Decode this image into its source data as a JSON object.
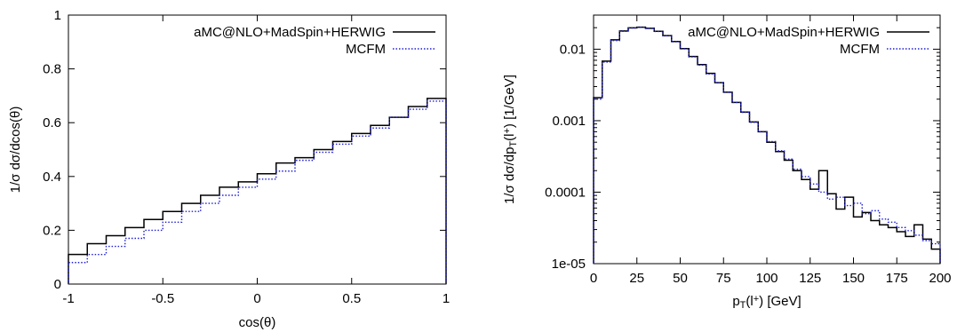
{
  "chart_data": [
    {
      "type": "line",
      "step": true,
      "title": "",
      "xlabel": "cos(θ)",
      "ylabel": "1/σ dσ/dcos(θ)",
      "xlim": [
        -1,
        1
      ],
      "ylim": [
        0,
        1
      ],
      "log_y": false,
      "grid": false,
      "legend_position": "top-right",
      "x_ticks": [
        "-1",
        "-0.5",
        "0",
        "0.5",
        "1"
      ],
      "y_ticks": [
        "0",
        "0.2",
        "0.4",
        "0.6",
        "0.8",
        "1"
      ],
      "bin_edges": [
        -1.0,
        -0.9,
        -0.8,
        -0.7,
        -0.6,
        -0.5,
        -0.4,
        -0.3,
        -0.2,
        -0.1,
        0.0,
        0.1,
        0.2,
        0.3,
        0.4,
        0.5,
        0.6,
        0.7,
        0.8,
        0.9,
        1.0
      ],
      "series": [
        {
          "name": "aMC@NLO+MadSpin+HERWIG",
          "color": "#000000",
          "dash": "solid",
          "values": [
            0.11,
            0.15,
            0.18,
            0.21,
            0.24,
            0.27,
            0.3,
            0.33,
            0.36,
            0.38,
            0.41,
            0.45,
            0.47,
            0.5,
            0.53,
            0.56,
            0.59,
            0.62,
            0.66,
            0.69
          ]
        },
        {
          "name": "MCFM",
          "color": "#1f1fd8",
          "dash": "dotted",
          "values": [
            0.08,
            0.11,
            0.14,
            0.17,
            0.2,
            0.23,
            0.27,
            0.3,
            0.33,
            0.36,
            0.39,
            0.42,
            0.46,
            0.49,
            0.52,
            0.55,
            0.58,
            0.62,
            0.65,
            0.68
          ]
        }
      ]
    },
    {
      "type": "line",
      "step": true,
      "title": "",
      "xlabel": "p_T(l^+) [GeV]",
      "ylabel": "1/σ dσ/dp_T(l^+) [1/GeV]",
      "xlim": [
        0,
        200
      ],
      "ylim": [
        1e-05,
        0.03
      ],
      "log_y": true,
      "grid": false,
      "legend_position": "top-right",
      "x_ticks": [
        "0",
        "25",
        "50",
        "75",
        "100",
        "125",
        "150",
        "175",
        "200"
      ],
      "y_ticks": [
        {
          "value": 0.01,
          "label": "0.01"
        },
        {
          "value": 0.001,
          "label": "0.001"
        },
        {
          "value": 0.0001,
          "label": "0.0001"
        },
        {
          "value": 1e-05,
          "label": "1e-05"
        }
      ],
      "bin_edges": [
        0,
        5,
        10,
        15,
        20,
        25,
        30,
        35,
        40,
        45,
        50,
        55,
        60,
        65,
        70,
        75,
        80,
        85,
        90,
        95,
        100,
        105,
        110,
        115,
        120,
        125,
        130,
        135,
        140,
        145,
        150,
        155,
        160,
        165,
        170,
        175,
        180,
        185,
        190,
        195,
        200
      ],
      "series": [
        {
          "name": "aMC@NLO+MadSpin+HERWIG",
          "color": "#000000",
          "dash": "solid",
          "values": [
            0.0021,
            0.0068,
            0.0135,
            0.018,
            0.0199,
            0.0203,
            0.0196,
            0.0178,
            0.0155,
            0.0128,
            0.0102,
            0.0079,
            0.0061,
            0.0046,
            0.0034,
            0.0025,
            0.0018,
            0.00132,
            0.00096,
            0.0007,
            0.0005,
            0.00037,
            0.00028,
            0.0002,
            0.00015,
            0.00011,
            0.0002,
            9.5e-05,
            5.8e-05,
            8.5e-05,
            4.5e-05,
            5.2e-05,
            4e-05,
            3.5e-05,
            3.2e-05,
            2.8e-05,
            2.4e-05,
            3.5e-05,
            2.2e-05,
            1.6e-05
          ]
        },
        {
          "name": "MCFM",
          "color": "#1f1fd8",
          "dash": "dotted",
          "values": [
            0.002,
            0.0066,
            0.0132,
            0.0178,
            0.0198,
            0.0202,
            0.0195,
            0.0177,
            0.0154,
            0.0127,
            0.0101,
            0.0078,
            0.006,
            0.0045,
            0.0034,
            0.0025,
            0.0018,
            0.00131,
            0.00095,
            0.0007,
            0.00051,
            0.00038,
            0.00029,
            0.00021,
            0.000165,
            0.00013,
            0.0001,
            8e-05,
            8.5e-05,
            6.5e-05,
            7e-05,
            5e-05,
            5.5e-05,
            4.2e-05,
            3.8e-05,
            3.2e-05,
            2.9e-05,
            2.5e-05,
            2.1e-05,
            1.9e-05
          ]
        }
      ]
    }
  ]
}
